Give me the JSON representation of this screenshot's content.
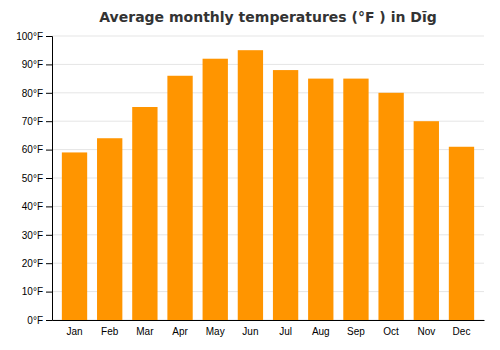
{
  "chart_data": {
    "type": "bar",
    "title": "Average monthly temperatures (°F ) in Dīg",
    "categories": [
      "Jan",
      "Feb",
      "Mar",
      "Apr",
      "May",
      "Jun",
      "Jul",
      "Aug",
      "Sep",
      "Oct",
      "Nov",
      "Dec"
    ],
    "values": [
      59,
      64,
      75,
      86,
      92,
      95,
      88,
      85,
      85,
      80,
      70,
      61
    ],
    "color": "#FF9500",
    "ylim": [
      0,
      100
    ],
    "yticks": [
      {
        "value": 0,
        "label": "0°F"
      },
      {
        "value": 10,
        "label": "10°F"
      },
      {
        "value": 20,
        "label": "20°F"
      },
      {
        "value": 30,
        "label": "30°F"
      },
      {
        "value": 40,
        "label": "40°F"
      },
      {
        "value": 50,
        "label": "50°F"
      },
      {
        "value": 60,
        "label": "60°F"
      },
      {
        "value": 70,
        "label": "70°F"
      },
      {
        "value": 80,
        "label": "80°F"
      },
      {
        "value": 90,
        "label": "90°F"
      },
      {
        "value": 100,
        "label": "100°F"
      }
    ],
    "grid": true
  }
}
